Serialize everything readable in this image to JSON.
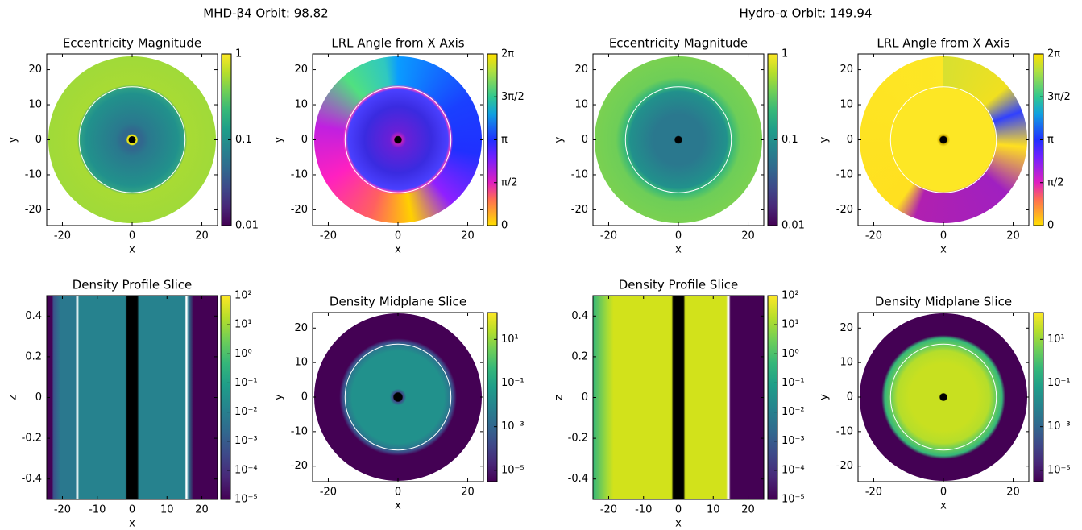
{
  "figure_titles": [
    "MHD-β4  Orbit: 98.82",
    "Hydro-α  Orbit: 149.94"
  ],
  "chart_data": [
    {
      "type": "heatmap",
      "title": "Eccentricity Magnitude",
      "xlabel": "x",
      "ylabel": "y",
      "xlim": [
        -24.5,
        24.5
      ],
      "ylim": [
        -24.5,
        24.5
      ],
      "xticks": [
        -20,
        0,
        20
      ],
      "yticks": [
        -20,
        -10,
        0,
        10,
        20
      ],
      "colorbar": {
        "cmap": "viridis",
        "log": true,
        "lim": [
          0.01,
          1
        ],
        "ticks": [
          0.01,
          0.1,
          1
        ]
      }
    },
    {
      "type": "heatmap",
      "title": "LRL Angle from X Axis",
      "xlabel": "x",
      "ylabel": "y",
      "xlim": [
        -24.5,
        24.5
      ],
      "ylim": [
        -24.5,
        24.5
      ],
      "xticks": [
        -20,
        0,
        20
      ],
      "yticks": [
        -20,
        -10,
        0,
        10,
        20
      ],
      "colorbar": {
        "cmap": "angle",
        "log": false,
        "lim": [
          0,
          6.2832
        ],
        "ticks": [
          0,
          {
            "value": 1.5708,
            "label": "π/2"
          },
          {
            "value": 3.1416,
            "label": "π"
          },
          {
            "value": 4.7124,
            "label": "3π/2"
          },
          {
            "value": 6.2832,
            "label": "2π"
          }
        ]
      }
    },
    {
      "type": "heatmap",
      "title": "Eccentricity Magnitude",
      "xlabel": "x",
      "ylabel": "y",
      "xlim": [
        -24.5,
        24.5
      ],
      "ylim": [
        -24.5,
        24.5
      ],
      "xticks": [
        -20,
        0,
        20
      ],
      "yticks": [
        -20,
        -10,
        0,
        10,
        20
      ],
      "colorbar": {
        "cmap": "viridis",
        "log": true,
        "lim": [
          0.01,
          1
        ],
        "ticks": [
          0.01,
          0.1,
          1
        ]
      }
    },
    {
      "type": "heatmap",
      "title": "LRL Angle from X Axis",
      "xlabel": "x",
      "ylabel": "y",
      "xlim": [
        -24.5,
        24.5
      ],
      "ylim": [
        -24.5,
        24.5
      ],
      "xticks": [
        -20,
        0,
        20
      ],
      "yticks": [
        -20,
        -10,
        0,
        10,
        20
      ],
      "colorbar": {
        "cmap": "angle",
        "log": false,
        "lim": [
          0,
          6.2832
        ],
        "ticks": [
          0,
          {
            "value": 1.5708,
            "label": "π/2"
          },
          {
            "value": 3.1416,
            "label": "π"
          },
          {
            "value": 4.7124,
            "label": "3π/2"
          },
          {
            "value": 6.2832,
            "label": "2π"
          }
        ]
      }
    },
    {
      "type": "heatmap",
      "title": "Density Profile Slice",
      "xlabel": "x",
      "ylabel": "z",
      "xlim": [
        -24.5,
        24.5
      ],
      "ylim": [
        -0.5,
        0.5
      ],
      "xticks": [
        -20,
        -10,
        0,
        10,
        20
      ],
      "yticks": [
        -0.4,
        -0.2,
        0,
        0.2,
        0.4
      ],
      "colorbar": {
        "cmap": "viridis",
        "log": true,
        "lim": [
          1e-05,
          100
        ],
        "ticks": [
          {
            "value": 1e-05,
            "label": "10⁻⁵"
          },
          {
            "value": 0.0001,
            "label": "10⁻⁴"
          },
          {
            "value": 0.001,
            "label": "10⁻³"
          },
          {
            "value": 0.01,
            "label": "10⁻²"
          },
          {
            "value": 0.1,
            "label": "10⁻¹"
          },
          {
            "value": 1,
            "label": "10⁰"
          },
          {
            "value": 10,
            "label": "10¹"
          },
          {
            "value": 100,
            "label": "10²"
          }
        ]
      }
    },
    {
      "type": "heatmap",
      "title": "Density Midplane Slice",
      "xlabel": "x",
      "ylabel": "y",
      "xlim": [
        -24.5,
        24.5
      ],
      "ylim": [
        -24.5,
        24.5
      ],
      "xticks": [
        -20,
        0,
        20
      ],
      "yticks": [
        -20,
        -10,
        0,
        10,
        20
      ],
      "colorbar": {
        "cmap": "viridis",
        "log": true,
        "lim": [
          3e-06,
          170
        ],
        "ticks": [
          {
            "value": 1e-05,
            "label": "10⁻⁵"
          },
          {
            "value": 0.001,
            "label": "10⁻³"
          },
          {
            "value": 0.1,
            "label": "10⁻¹"
          },
          {
            "value": 10,
            "label": "10¹"
          }
        ]
      }
    },
    {
      "type": "heatmap",
      "title": "Density Profile Slice",
      "xlabel": "x",
      "ylabel": "z",
      "xlim": [
        -24.5,
        24.5
      ],
      "ylim": [
        -0.5,
        0.5
      ],
      "xticks": [
        -20,
        -10,
        0,
        10,
        20
      ],
      "yticks": [
        -0.4,
        -0.2,
        0,
        0.2,
        0.4
      ],
      "colorbar": {
        "cmap": "viridis",
        "log": true,
        "lim": [
          1e-05,
          100
        ],
        "ticks": [
          {
            "value": 1e-05,
            "label": "10⁻⁵"
          },
          {
            "value": 0.0001,
            "label": "10⁻⁴"
          },
          {
            "value": 0.001,
            "label": "10⁻³"
          },
          {
            "value": 0.01,
            "label": "10⁻²"
          },
          {
            "value": 0.1,
            "label": "10⁻¹"
          },
          {
            "value": 1,
            "label": "10⁰"
          },
          {
            "value": 10,
            "label": "10¹"
          },
          {
            "value": 100,
            "label": "10²"
          }
        ]
      }
    },
    {
      "type": "heatmap",
      "title": "Density Midplane Slice",
      "xlabel": "x",
      "ylabel": "y",
      "xlim": [
        -24.5,
        24.5
      ],
      "ylim": [
        -24.5,
        24.5
      ],
      "xticks": [
        -20,
        0,
        20
      ],
      "yticks": [
        -20,
        -10,
        0,
        10,
        20
      ],
      "colorbar": {
        "cmap": "viridis",
        "log": true,
        "lim": [
          3e-06,
          170
        ],
        "ticks": [
          {
            "value": 1e-05,
            "label": "10⁻⁵"
          },
          {
            "value": 0.001,
            "label": "10⁻³"
          },
          {
            "value": 0.1,
            "label": "10⁻¹"
          },
          {
            "value": 10,
            "label": "10¹"
          }
        ]
      }
    }
  ]
}
